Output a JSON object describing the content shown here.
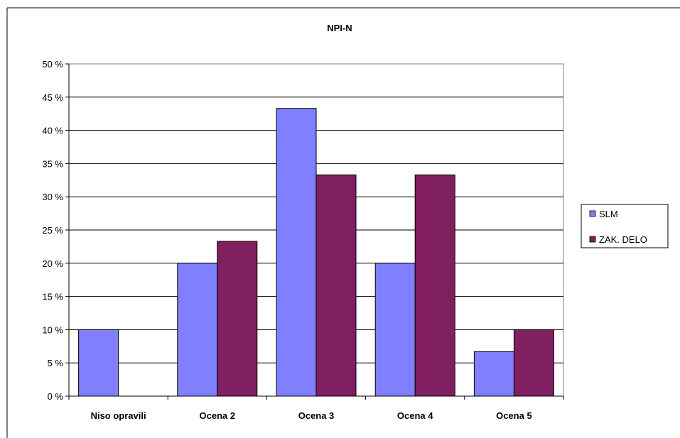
{
  "chart_data": {
    "type": "bar",
    "title": "NPI-N",
    "xlabel": "",
    "ylabel": "",
    "categories": [
      "Niso opravili",
      "Ocena 2",
      "Ocena 3",
      "Ocena 4",
      "Ocena 5"
    ],
    "series": [
      {
        "name": "SLM",
        "values": [
          10,
          20,
          43.3,
          20,
          6.7
        ],
        "color": "#8080ff"
      },
      {
        "name": "ZAK. DELO",
        "values": [
          0,
          23.3,
          33.3,
          33.3,
          10
        ],
        "color": "#802060"
      }
    ],
    "ylim": [
      0,
      50
    ],
    "yticks": [
      0,
      5,
      10,
      15,
      20,
      25,
      30,
      35,
      40,
      45,
      50
    ],
    "ytick_labels": [
      "0 %",
      "5 %",
      "10 %",
      "15 %",
      "20 %",
      "25 %",
      "30 %",
      "35 %",
      "40 %",
      "45 %",
      "50 %"
    ],
    "grid": true,
    "legend_position": "right"
  }
}
